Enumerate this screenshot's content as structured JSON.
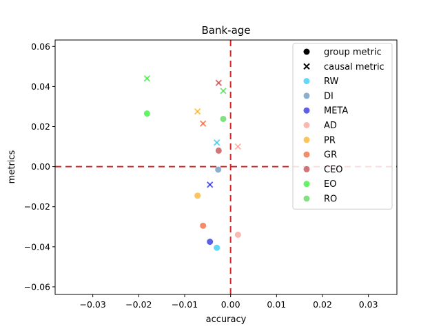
{
  "chart_data": {
    "type": "scatter",
    "title": "Bank-age",
    "xlabel": "accuracy",
    "ylabel": "metrics",
    "xlim": [
      -0.0382,
      0.0362
    ],
    "ylim": [
      -0.0638,
      0.0632
    ],
    "xticks": [
      -0.03,
      -0.02,
      -0.01,
      0.0,
      0.01,
      0.02,
      0.03
    ],
    "xtick_labels": [
      "−0.03",
      "−0.02",
      "−0.01",
      "0.00",
      "0.01",
      "0.02",
      "0.03"
    ],
    "yticks": [
      -0.06,
      -0.04,
      -0.02,
      0.0,
      0.02,
      0.04,
      0.06
    ],
    "ytick_labels": [
      "−0.06",
      "−0.04",
      "−0.02",
      "0.00",
      "0.02",
      "0.04",
      "0.06"
    ],
    "grid": false,
    "legend_placement": "top-right",
    "reference_lines": {
      "x": 0.0,
      "y": 0.0,
      "color": "#d62728",
      "style": "dashed"
    },
    "marker_legend": [
      {
        "label": "group metric",
        "marker": "circle"
      },
      {
        "label": "causal metric",
        "marker": "x"
      }
    ],
    "series": [
      {
        "name": "RW",
        "color": "#1ec8f5",
        "group": {
          "x": -0.003,
          "y": -0.0405
        },
        "causal": {
          "x": -0.003,
          "y": 0.012
        }
      },
      {
        "name": "DI",
        "color": "#5b8db8",
        "group": {
          "x": -0.0027,
          "y": -0.0015
        },
        "causal": null
      },
      {
        "name": "META",
        "color": "#1a1ae0",
        "group": {
          "x": -0.0045,
          "y": -0.0375
        },
        "causal": {
          "x": -0.0045,
          "y": -0.009
        }
      },
      {
        "name": "AD",
        "color": "#f79a8f",
        "group": {
          "x": 0.0016,
          "y": -0.034
        },
        "causal": {
          "x": 0.0016,
          "y": 0.01
        }
      },
      {
        "name": "PR",
        "color": "#fbab17",
        "group": {
          "x": -0.0072,
          "y": -0.0145
        },
        "causal": {
          "x": -0.0072,
          "y": 0.0275
        }
      },
      {
        "name": "GR",
        "color": "#f05a28",
        "group": {
          "x": -0.006,
          "y": -0.0295
        },
        "causal": {
          "x": -0.006,
          "y": 0.0215
        }
      },
      {
        "name": "CEO",
        "color": "#bf3a3f",
        "group": {
          "x": -0.0026,
          "y": 0.008
        },
        "causal": {
          "x": -0.0026,
          "y": 0.0418
        }
      },
      {
        "name": "EO",
        "color": "#22ee22",
        "group": {
          "x": -0.0182,
          "y": 0.0265
        },
        "causal": {
          "x": -0.0182,
          "y": 0.044
        }
      },
      {
        "name": "RO",
        "color": "#4cd44c",
        "group": {
          "x": -0.0016,
          "y": 0.0238
        },
        "causal": {
          "x": -0.0016,
          "y": 0.0378
        }
      }
    ]
  }
}
